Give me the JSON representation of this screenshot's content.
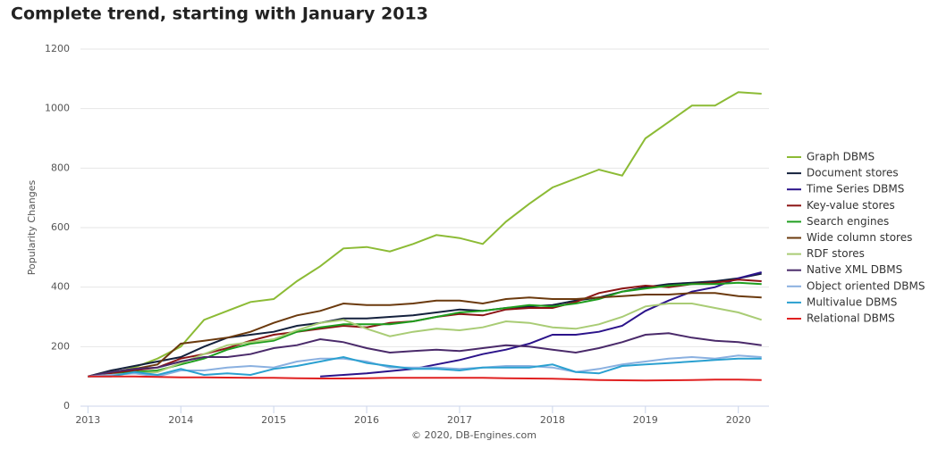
{
  "chart_data": {
    "type": "line",
    "title": "Complete trend, starting with January 2013",
    "y_label": "Popularity Changes",
    "credit": "© 2020, DB-Engines.com",
    "legend": "right",
    "grid": true,
    "x": [
      2013,
      2013.25,
      2013.5,
      2013.75,
      2014,
      2014.25,
      2014.5,
      2014.75,
      2015,
      2015.25,
      2015.5,
      2015.75,
      2016,
      2016.25,
      2016.5,
      2016.75,
      2017,
      2017.25,
      2017.5,
      2017.75,
      2018,
      2018.25,
      2018.5,
      2018.75,
      2019,
      2019.25,
      2019.5,
      2019.75,
      2020,
      2020.25
    ],
    "xlim": [
      2012.92,
      2020.33
    ],
    "xticks": [
      2013,
      2014,
      2015,
      2016,
      2017,
      2018,
      2019,
      2020
    ],
    "ylim": [
      0,
      1200
    ],
    "yticks": [
      0,
      200,
      400,
      600,
      800,
      1000,
      1200
    ],
    "series": [
      {
        "name": "Graph DBMS",
        "color": "#8cbb35",
        "values": [
          100,
          110,
          130,
          160,
          200,
          290,
          320,
          350,
          360,
          420,
          470,
          530,
          535,
          520,
          545,
          575,
          565,
          545,
          620,
          680,
          735,
          765,
          795,
          775,
          900,
          955,
          1010,
          1010,
          1055,
          1050
        ]
      },
      {
        "name": "Document stores",
        "color": "#14213d",
        "values": [
          100,
          120,
          135,
          150,
          165,
          200,
          230,
          240,
          250,
          270,
          280,
          295,
          295,
          300,
          305,
          315,
          325,
          320,
          330,
          335,
          340,
          355,
          365,
          385,
          400,
          410,
          415,
          420,
          430,
          445
        ]
      },
      {
        "name": "Time Series DBMS",
        "color": "#2b138a",
        "values": [
          null,
          null,
          null,
          null,
          null,
          null,
          null,
          null,
          null,
          null,
          100,
          105,
          110,
          118,
          125,
          140,
          155,
          175,
          190,
          210,
          240,
          240,
          250,
          270,
          320,
          355,
          385,
          400,
          430,
          450
        ]
      },
      {
        "name": "Key-value stores",
        "color": "#8b1414",
        "values": [
          100,
          110,
          120,
          130,
          160,
          175,
          195,
          220,
          240,
          250,
          260,
          270,
          265,
          280,
          285,
          300,
          310,
          305,
          325,
          330,
          330,
          350,
          380,
          395,
          405,
          400,
          410,
          415,
          425,
          420
        ]
      },
      {
        "name": "Search engines",
        "color": "#1f9e1f",
        "values": [
          100,
          105,
          115,
          120,
          140,
          160,
          190,
          210,
          220,
          250,
          265,
          275,
          275,
          275,
          285,
          300,
          315,
          320,
          330,
          340,
          335,
          345,
          360,
          385,
          395,
          405,
          410,
          410,
          415,
          410
        ]
      },
      {
        "name": "Wide column stores",
        "color": "#6b3a0e",
        "values": [
          100,
          115,
          125,
          140,
          210,
          220,
          230,
          250,
          280,
          305,
          320,
          345,
          340,
          340,
          345,
          355,
          355,
          345,
          360,
          365,
          360,
          360,
          365,
          370,
          375,
          375,
          380,
          380,
          370,
          365
        ]
      },
      {
        "name": "RDF stores",
        "color": "#a9cc75",
        "values": [
          100,
          105,
          110,
          115,
          145,
          175,
          205,
          215,
          225,
          255,
          280,
          290,
          260,
          235,
          250,
          260,
          255,
          265,
          285,
          280,
          265,
          260,
          275,
          300,
          335,
          345,
          345,
          330,
          315,
          290
        ]
      },
      {
        "name": "Native XML DBMS",
        "color": "#4a2a6a",
        "values": [
          100,
          115,
          125,
          130,
          150,
          165,
          165,
          175,
          195,
          205,
          225,
          215,
          195,
          180,
          185,
          190,
          185,
          195,
          205,
          200,
          190,
          180,
          195,
          215,
          240,
          245,
          230,
          220,
          215,
          205
        ]
      },
      {
        "name": "Object oriented DBMS",
        "color": "#8ab0e0",
        "values": [
          100,
          105,
          110,
          100,
          120,
          120,
          130,
          135,
          130,
          150,
          160,
          160,
          150,
          130,
          130,
          130,
          125,
          130,
          135,
          135,
          130,
          115,
          125,
          140,
          150,
          160,
          165,
          160,
          170,
          165
        ]
      },
      {
        "name": "Multivalue DBMS",
        "color": "#2aa0d0",
        "values": [
          100,
          100,
          115,
          105,
          125,
          105,
          110,
          105,
          125,
          135,
          150,
          165,
          145,
          135,
          125,
          125,
          120,
          130,
          130,
          130,
          140,
          115,
          110,
          135,
          140,
          145,
          150,
          155,
          160,
          160
        ]
      },
      {
        "name": "Relational DBMS",
        "color": "#e02020",
        "values": [
          100,
          100,
          100,
          98,
          97,
          97,
          96,
          95,
          95,
          94,
          93,
          93,
          94,
          95,
          95,
          95,
          95,
          95,
          94,
          93,
          92,
          90,
          88,
          87,
          86,
          87,
          88,
          89,
          89,
          88
        ]
      }
    ]
  }
}
